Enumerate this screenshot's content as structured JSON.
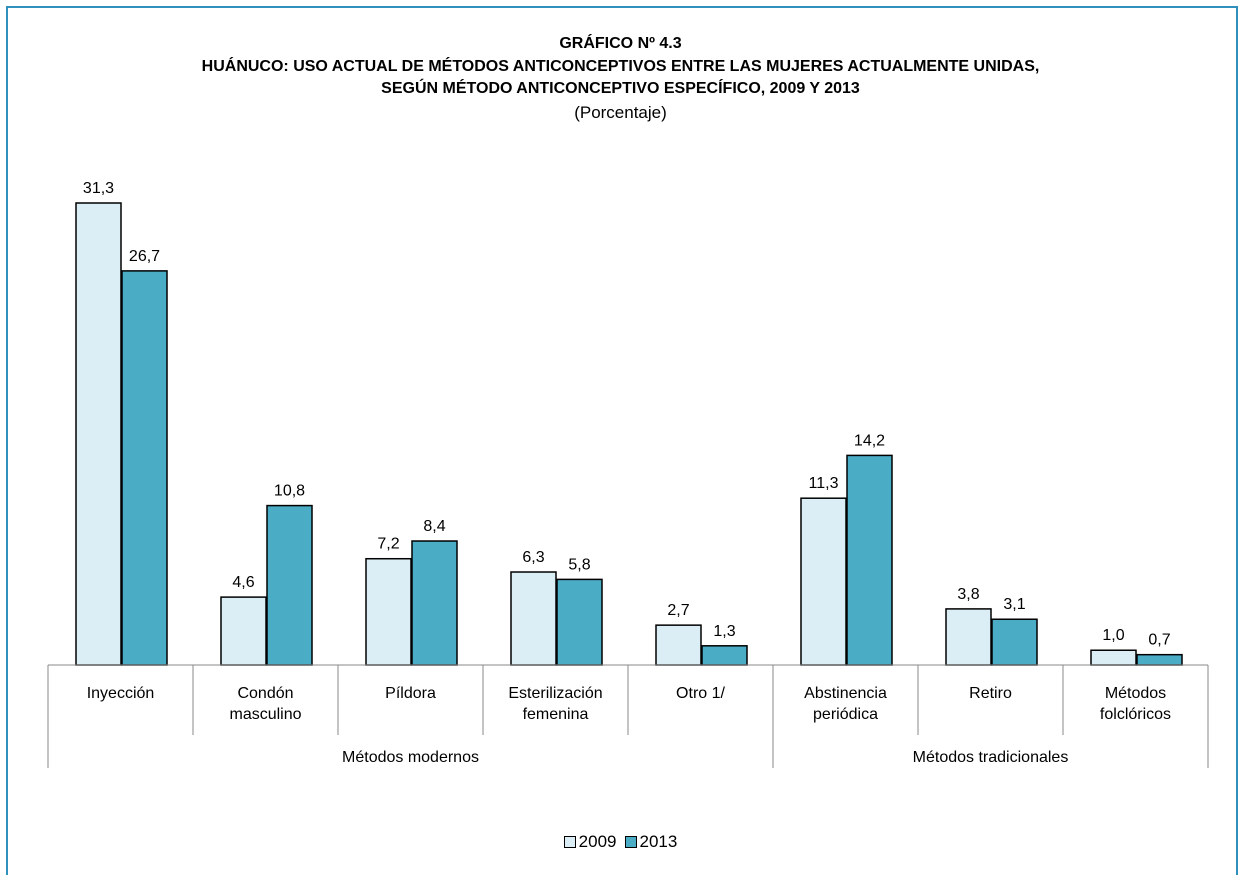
{
  "chart_data": {
    "type": "bar",
    "title": "GRÁFICO Nº 4.3",
    "subtitle_line1": "HUÁNUCO: USO ACTUAL DE MÉTODOS ANTICONCEPTIVOS ENTRE LAS MUJERES ACTUALMENTE UNIDAS,",
    "subtitle_line2": "SEGÚN MÉTODO ANTICONCEPTIVO ESPECÍFICO, 2009 Y 2013",
    "unit_label": "(Porcentaje)",
    "categories": [
      [
        "Inyección"
      ],
      [
        "Condón",
        "masculino"
      ],
      [
        "Píldora"
      ],
      [
        "Esterilización",
        "femenina"
      ],
      [
        "Otro 1/"
      ],
      [
        "Abstinencia",
        "periódica"
      ],
      [
        "Retiro"
      ],
      [
        "Métodos",
        "folclóricos"
      ]
    ],
    "groups": [
      {
        "label": "Métodos modernos",
        "start": 0,
        "end": 4
      },
      {
        "label": "Métodos tradicionales",
        "start": 5,
        "end": 7
      }
    ],
    "series": [
      {
        "name": "2009",
        "color": "#dbeef5",
        "values": [
          31.3,
          4.6,
          7.2,
          6.3,
          2.7,
          11.3,
          3.8,
          1.0
        ],
        "labels": [
          "31,3",
          "4,6",
          "7,2",
          "6,3",
          "2,7",
          "11,3",
          "3,8",
          "1,0"
        ]
      },
      {
        "name": "2013",
        "color": "#4bacc6",
        "values": [
          26.7,
          10.8,
          8.4,
          5.8,
          1.3,
          14.2,
          3.1,
          0.7
        ],
        "labels": [
          "26,7",
          "10,8",
          "8,4",
          "5,8",
          "1,3",
          "14,2",
          "3,1",
          "0,7"
        ]
      }
    ],
    "ylim": [
      0,
      31.3
    ],
    "grid": false,
    "legend_position": "bottom"
  }
}
